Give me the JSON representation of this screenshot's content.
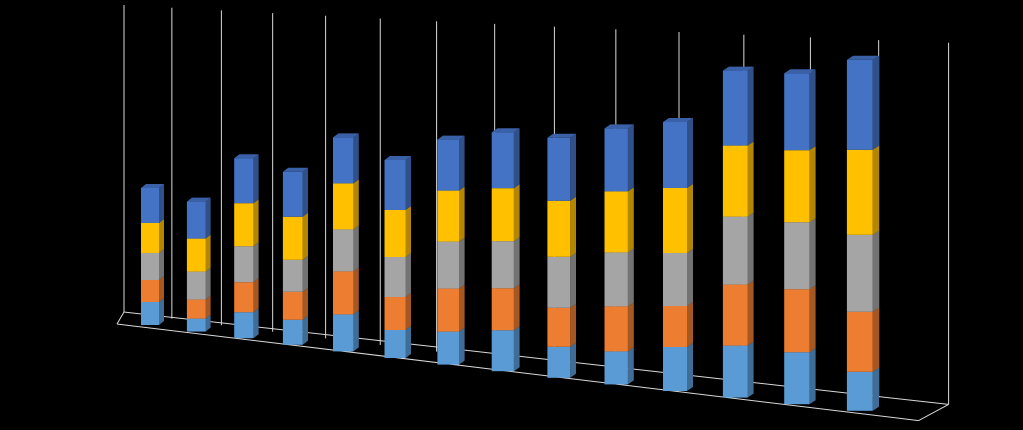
{
  "chart_data": {
    "type": "bar3d_stacked",
    "categories": [
      null,
      null,
      null,
      null,
      null,
      null,
      null,
      null,
      null,
      null,
      null,
      null,
      null,
      null
    ],
    "series": [
      {
        "color": "#5b9bd5",
        "values": [
          23,
          13,
          26,
          25,
          37,
          28,
          33,
          41,
          31,
          33,
          44,
          52,
          52,
          39
        ]
      },
      {
        "color": "#ed7d31",
        "values": [
          22,
          19,
          30,
          28,
          43,
          33,
          43,
          42,
          39,
          45,
          41,
          61,
          63,
          60
        ]
      },
      {
        "color": "#a5a5a5",
        "values": [
          27,
          28,
          36,
          32,
          42,
          40,
          47,
          47,
          51,
          54,
          53,
          68,
          67,
          77
        ]
      },
      {
        "color": "#ffc000",
        "values": [
          30,
          33,
          43,
          43,
          46,
          47,
          51,
          53,
          56,
          61,
          65,
          71,
          72,
          85
        ]
      },
      {
        "color": "#4472c4",
        "values": [
          35,
          37,
          45,
          45,
          46,
          50,
          51,
          56,
          63,
          63,
          66,
          75,
          77,
          90
        ]
      }
    ]
  }
}
